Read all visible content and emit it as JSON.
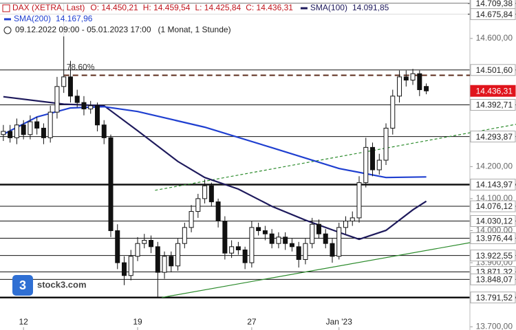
{
  "chart_data": {
    "type": "candlestick",
    "instrument": "DAX (XETRA, Last)",
    "instrument_color": "#c0141c",
    "ohlc_labels": [
      "O: 14.450,21",
      "H: 14.459,54",
      "L: 14.425,84",
      "C: 14.436,31"
    ],
    "period": "09.12.2022 09:00 - 05.01.2023 17:00",
    "interval": "(1 Monat, 1 Stunde)",
    "brand": "stock3.com",
    "xlim": [
      -0.5,
      69.5
    ],
    "ylim": [
      13690,
      14720
    ],
    "xticks": [
      {
        "value": 3,
        "label": "12"
      },
      {
        "value": 20,
        "label": "19"
      },
      {
        "value": 37,
        "label": "27"
      },
      {
        "value": 50,
        "label": "Jan '23"
      }
    ],
    "yticks": [
      {
        "value": 14600,
        "label": "14.600,00"
      },
      {
        "value": 14200,
        "label": "14.200,00"
      },
      {
        "value": 14100,
        "label": "14.100,00"
      },
      {
        "value": 14000,
        "label": "14.000,00"
      },
      {
        "value": 13900,
        "label": "13.900,00"
      },
      {
        "value": 13700,
        "label": "13.700,00"
      }
    ],
    "open": [
      14300,
      14310,
      14290,
      14330,
      14300,
      14340,
      14320,
      14290,
      14370,
      14450,
      14480,
      14420,
      14400,
      14380,
      14390,
      14330,
      14290,
      14000,
      13900,
      13860,
      13920,
      13960,
      13970,
      13950,
      13870,
      13920,
      13890,
      13960,
      14010,
      14060,
      14100,
      14140,
      14090,
      14030,
      13930,
      13950,
      13940,
      13900,
      14010,
      14000,
      13990,
      13960,
      13980,
      13960,
      13950,
      13910,
      13960,
      14020,
      13990,
      13960,
      13920,
      14010,
      14030,
      14040,
      14150,
      14260,
      14190,
      14220,
      14320,
      14420,
      14480,
      14470,
      14490,
      14450.21
    ],
    "high": [
      14330,
      14330,
      14350,
      14345,
      14360,
      14355,
      14335,
      14390,
      14480,
      14709.38,
      14530,
      14440,
      14420,
      14405,
      14400,
      14345,
      14300,
      14020,
      13920,
      13940,
      13980,
      13990,
      13985,
      13965,
      13935,
      13935,
      13975,
      14025,
      14080,
      14115,
      14160,
      14150,
      14100,
      14045,
      13970,
      13965,
      13950,
      14030,
      14025,
      14015,
      14005,
      13995,
      13995,
      13975,
      13965,
      13975,
      14040,
      14035,
      14005,
      13975,
      14025,
      14045,
      14060,
      14170,
      14290,
      14275,
      14240,
      14335,
      14440,
      14500,
      14500,
      14505,
      14500,
      14459.54
    ],
    "low": [
      14280,
      14275,
      14270,
      14285,
      14285,
      14300,
      14270,
      14275,
      14350,
      14430,
      14400,
      14385,
      14360,
      14365,
      14310,
      14270,
      13980,
      13880,
      13830,
      13845,
      13905,
      13945,
      13930,
      13791.52,
      13850,
      13870,
      13875,
      13945,
      13995,
      14040,
      14085,
      14075,
      14010,
      13910,
      13915,
      13925,
      13880,
      13885,
      13985,
      13970,
      13945,
      13945,
      13940,
      13935,
      13885,
      13895,
      13945,
      13975,
      13945,
      13900,
      13910,
      13990,
      14015,
      14025,
      14135,
      14170,
      14175,
      14205,
      14300,
      14400,
      14450,
      14455,
      14420,
      14425.84
    ],
    "close": [
      14310,
      14290,
      14330,
      14300,
      14340,
      14320,
      14290,
      14370,
      14450,
      14480,
      14420,
      14400,
      14380,
      14390,
      14330,
      14290,
      14000,
      13900,
      13860,
      13920,
      13960,
      13970,
      13950,
      13870,
      13920,
      13890,
      13960,
      14010,
      14060,
      14100,
      14140,
      14090,
      14030,
      13930,
      13950,
      13940,
      13900,
      14010,
      14000,
      13990,
      13960,
      13980,
      13960,
      13950,
      13910,
      13960,
      14020,
      13990,
      13960,
      13920,
      14010,
      14030,
      14040,
      14150,
      14260,
      14190,
      14220,
      14320,
      14420,
      14480,
      14470,
      14490,
      14440,
      14436.31
    ],
    "series": [
      {
        "name": "SMA(100)",
        "value_label": "14.091,85",
        "color": "#1e1a5c",
        "x": [
          0,
          9,
          15,
          20,
          26,
          30,
          35,
          40,
          45,
          50,
          53,
          57,
          61,
          63
        ],
        "values": [
          14418,
          14395,
          14390,
          14312,
          14216,
          14166,
          14130,
          14076,
          14033,
          13995,
          13973,
          14001,
          14065,
          14091.85
        ]
      },
      {
        "name": "SMA(200)",
        "value_label": "14.167,96",
        "color": "#1f3fd0",
        "x": [
          0,
          5,
          10,
          15,
          20,
          30,
          40,
          50,
          57,
          63
        ],
        "values": [
          14301,
          14355,
          14383,
          14387,
          14372,
          14323,
          14259,
          14194,
          14166,
          14167.96
        ]
      }
    ],
    "levels": [
      {
        "value": 14709.38,
        "label": "14.709,38",
        "style": "thin"
      },
      {
        "value": 14675.84,
        "label": "14.675,84",
        "style": "thin"
      },
      {
        "value": 14501.6,
        "label": "14.501,60",
        "style": "thin"
      },
      {
        "value": 14436.31,
        "label": "14.436,31",
        "style": "current",
        "color": "#e0141c"
      },
      {
        "value": 14392.71,
        "label": "14.392,71",
        "style": "thin"
      },
      {
        "value": 14293.87,
        "label": "14.293,87",
        "style": "thin"
      },
      {
        "value": 14143.97,
        "label": "14.143,97",
        "style": "thick"
      },
      {
        "value": 14076.12,
        "label": "14.076,12",
        "style": "thin"
      },
      {
        "value": 14030.12,
        "label": "14.030,12",
        "style": "thin"
      },
      {
        "value": 13976.44,
        "label": "13.976,44",
        "style": "thin"
      },
      {
        "value": 13922.55,
        "label": "13.922,55",
        "style": "thin"
      },
      {
        "value": 13871.32,
        "label": "13.871,32",
        "style": "thin"
      },
      {
        "value": 13848.07,
        "label": "13.848,07",
        "style": "thin"
      },
      {
        "value": 13791.52,
        "label": "13.791,52",
        "style": "thick"
      }
    ],
    "fib": {
      "value": 14485,
      "label": "78.60%",
      "color": "#5a2a1a",
      "x": 9
    },
    "trendlines": [
      {
        "x": [
          22.6,
          76.4
        ],
        "values": [
          14126,
          14332
        ],
        "color": "#2a8a2a",
        "dash": true
      },
      {
        "x": [
          23.6,
          69.5
        ],
        "values": [
          13791.52,
          13962.5
        ],
        "color": "#2a8a2a",
        "dash": false
      }
    ]
  }
}
